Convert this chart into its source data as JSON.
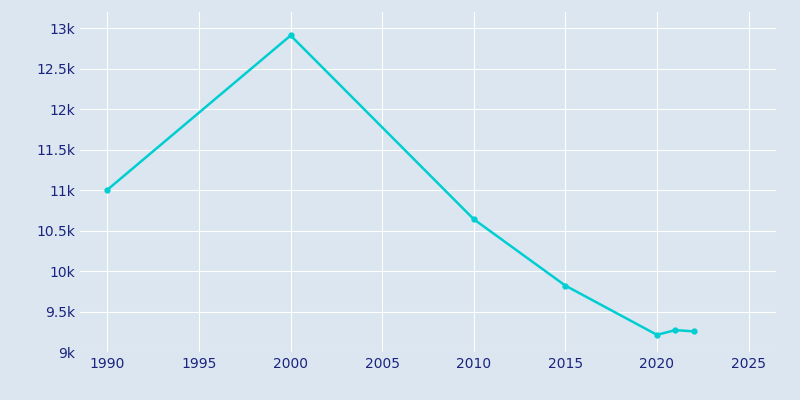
{
  "years": [
    1990,
    2000,
    2010,
    2015,
    2020,
    2021,
    2022
  ],
  "population": [
    11005,
    12910,
    10640,
    9820,
    9212,
    9270,
    9255
  ],
  "line_color": "#00CED1",
  "background_color": "#dce6f0",
  "plot_bg_color": "#dce6f0",
  "tick_label_color": "#1a237e",
  "grid_color": "#ffffff",
  "ylim": [
    9000,
    13200
  ],
  "xlim": [
    1988.5,
    2026.5
  ],
  "yticks": [
    9000,
    9500,
    10000,
    10500,
    11000,
    11500,
    12000,
    12500,
    13000
  ],
  "ytick_labels": [
    "9k",
    "9.5k",
    "10k",
    "10.5k",
    "11k",
    "11.5k",
    "12k",
    "12.5k",
    "13k"
  ],
  "xticks": [
    1990,
    1995,
    2000,
    2005,
    2010,
    2015,
    2020,
    2025
  ],
  "linewidth": 1.8,
  "marker": "o",
  "markersize": 3.5
}
